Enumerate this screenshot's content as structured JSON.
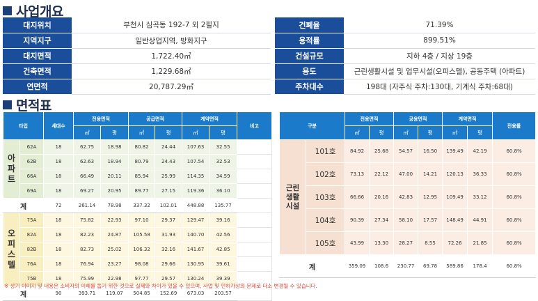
{
  "overview": {
    "title": "사업개요",
    "rows": [
      {
        "l1": "대지위치",
        "v1": "부천시 심곡동 192-7 외 2필지",
        "l2": "건폐율",
        "v2": "71.39%"
      },
      {
        "l1": "지역지구",
        "v1": "일반상업지역, 방화지구",
        "l2": "용적률",
        "v2": "899.51%"
      },
      {
        "l1": "대지면적",
        "v1": "1,722.40㎡",
        "l2": "건설규모",
        "v2": "지하 4층 / 지상 19층"
      },
      {
        "l1": "건축면적",
        "v1": "1,229.68㎡",
        "l2": "용도",
        "v2": "근린생활시설 및 업무시설(오피스텔), 공동주택 (아파트)"
      },
      {
        "l1": "연면적",
        "v1": "20,787.29㎡",
        "l2": "주차대수",
        "v2": "198대 (자주식 주차:130대, 기계식 주차:68대)"
      }
    ]
  },
  "area": {
    "title": "면적표",
    "left": {
      "headers": {
        "type": "타입",
        "units": "세대수",
        "exclusive": "전용면적",
        "supply": "공급면적",
        "contract": "계약면적",
        "remark": "비고",
        "sqm": "㎡",
        "pyeong": "평"
      },
      "groups": [
        {
          "name": "아파트",
          "rows": [
            {
              "type": "62A",
              "units": "18",
              "e_m": "62.75",
              "e_p": "18.98",
              "s_m": "80.82",
              "s_p": "24.44",
              "c_m": "107.63",
              "c_p": "32.55"
            },
            {
              "type": "62B",
              "units": "18",
              "e_m": "62.63",
              "e_p": "18.94",
              "s_m": "80.79",
              "s_p": "24.43",
              "c_m": "107.54",
              "c_p": "32.53"
            },
            {
              "type": "66A",
              "units": "18",
              "e_m": "66.49",
              "e_p": "20.11",
              "s_m": "85.94",
              "s_p": "25.99",
              "c_m": "114.35",
              "c_p": "34.59"
            },
            {
              "type": "69A",
              "units": "18",
              "e_m": "69.27",
              "e_p": "20.95",
              "s_m": "89.77",
              "s_p": "27.15",
              "c_m": "119.36",
              "c_p": "36.10"
            }
          ],
          "total": {
            "label": "계",
            "units": "72",
            "e_m": "261.14",
            "e_p": "78.98",
            "s_m": "337.32",
            "s_p": "102.01",
            "c_m": "448.88",
            "c_p": "135.77"
          }
        },
        {
          "name": "오피스텔",
          "rows": [
            {
              "type": "75A",
              "units": "18",
              "e_m": "75.82",
              "e_p": "22.93",
              "s_m": "97.10",
              "s_p": "29.37",
              "c_m": "129.47",
              "c_p": "39.16"
            },
            {
              "type": "82A",
              "units": "18",
              "e_m": "82.23",
              "e_p": "24.87",
              "s_m": "105.58",
              "s_p": "31.93",
              "c_m": "140.70",
              "c_p": "42.56"
            },
            {
              "type": "82B",
              "units": "18",
              "e_m": "82.73",
              "e_p": "25.02",
              "s_m": "106.32",
              "s_p": "32.16",
              "c_m": "141.67",
              "c_p": "42.85"
            },
            {
              "type": "76A",
              "units": "18",
              "e_m": "76.94",
              "e_p": "23.27",
              "s_m": "98.08",
              "s_p": "29.66",
              "c_m": "130.95",
              "c_p": "39.61"
            },
            {
              "type": "75B",
              "units": "18",
              "e_m": "75.99",
              "e_p": "22.98",
              "s_m": "97.77",
              "s_p": "29.57",
              "c_m": "130.24",
              "c_p": "39.39"
            }
          ],
          "total": {
            "label": "계",
            "units": "90",
            "e_m": "393.71",
            "e_p": "119.07",
            "s_m": "504.85",
            "s_p": "152.69",
            "c_m": "673.03",
            "c_p": "203.57"
          }
        }
      ]
    },
    "right": {
      "headers": {
        "category": "구분",
        "exclusive": "전용면적",
        "common": "공용면적",
        "contract": "계약면적",
        "ratio": "전용률",
        "sqm": "㎡",
        "pyeong": "평"
      },
      "group": "근린생활시설",
      "rows": [
        {
          "room": "101호",
          "e_m": "84.92",
          "e_p": "25.68",
          "m_m": "54.57",
          "m_p": "16.50",
          "c_m": "139.49",
          "c_p": "42.19",
          "ratio": "60.8%"
        },
        {
          "room": "102호",
          "e_m": "73.13",
          "e_p": "22.12",
          "m_m": "47.00",
          "m_p": "14.21",
          "c_m": "120.13",
          "c_p": "36.33",
          "ratio": "60.8%"
        },
        {
          "room": "103호",
          "e_m": "66.66",
          "e_p": "20.16",
          "m_m": "42.83",
          "m_p": "12.95",
          "c_m": "109.49",
          "c_p": "33.12",
          "ratio": "60.8%"
        },
        {
          "room": "104호",
          "e_m": "90.39",
          "e_p": "27.34",
          "m_m": "58.10",
          "m_p": "17.57",
          "c_m": "148.49",
          "c_p": "44.91",
          "ratio": "60.8%"
        },
        {
          "room": "105호",
          "e_m": "43.99",
          "e_p": "13.30",
          "m_m": "28.27",
          "m_p": "8.55",
          "c_m": "72.26",
          "c_p": "21.85",
          "ratio": "60.8%"
        }
      ],
      "total": {
        "label": "계",
        "e_m": "359.09",
        "e_p": "108.6",
        "m_m": "230.77",
        "m_p": "69.78",
        "c_m": "589.86",
        "c_p": "178.4",
        "ratio": "60.8%"
      }
    }
  },
  "footnote": "※ 상기 이미지 및 내용은 소비자의 이해를 돕기 위한 것으로 실제와 차이가 있을 수 있으며, 사업 및 인허가상의 문제로 다소 변경될 수 있습니다."
}
